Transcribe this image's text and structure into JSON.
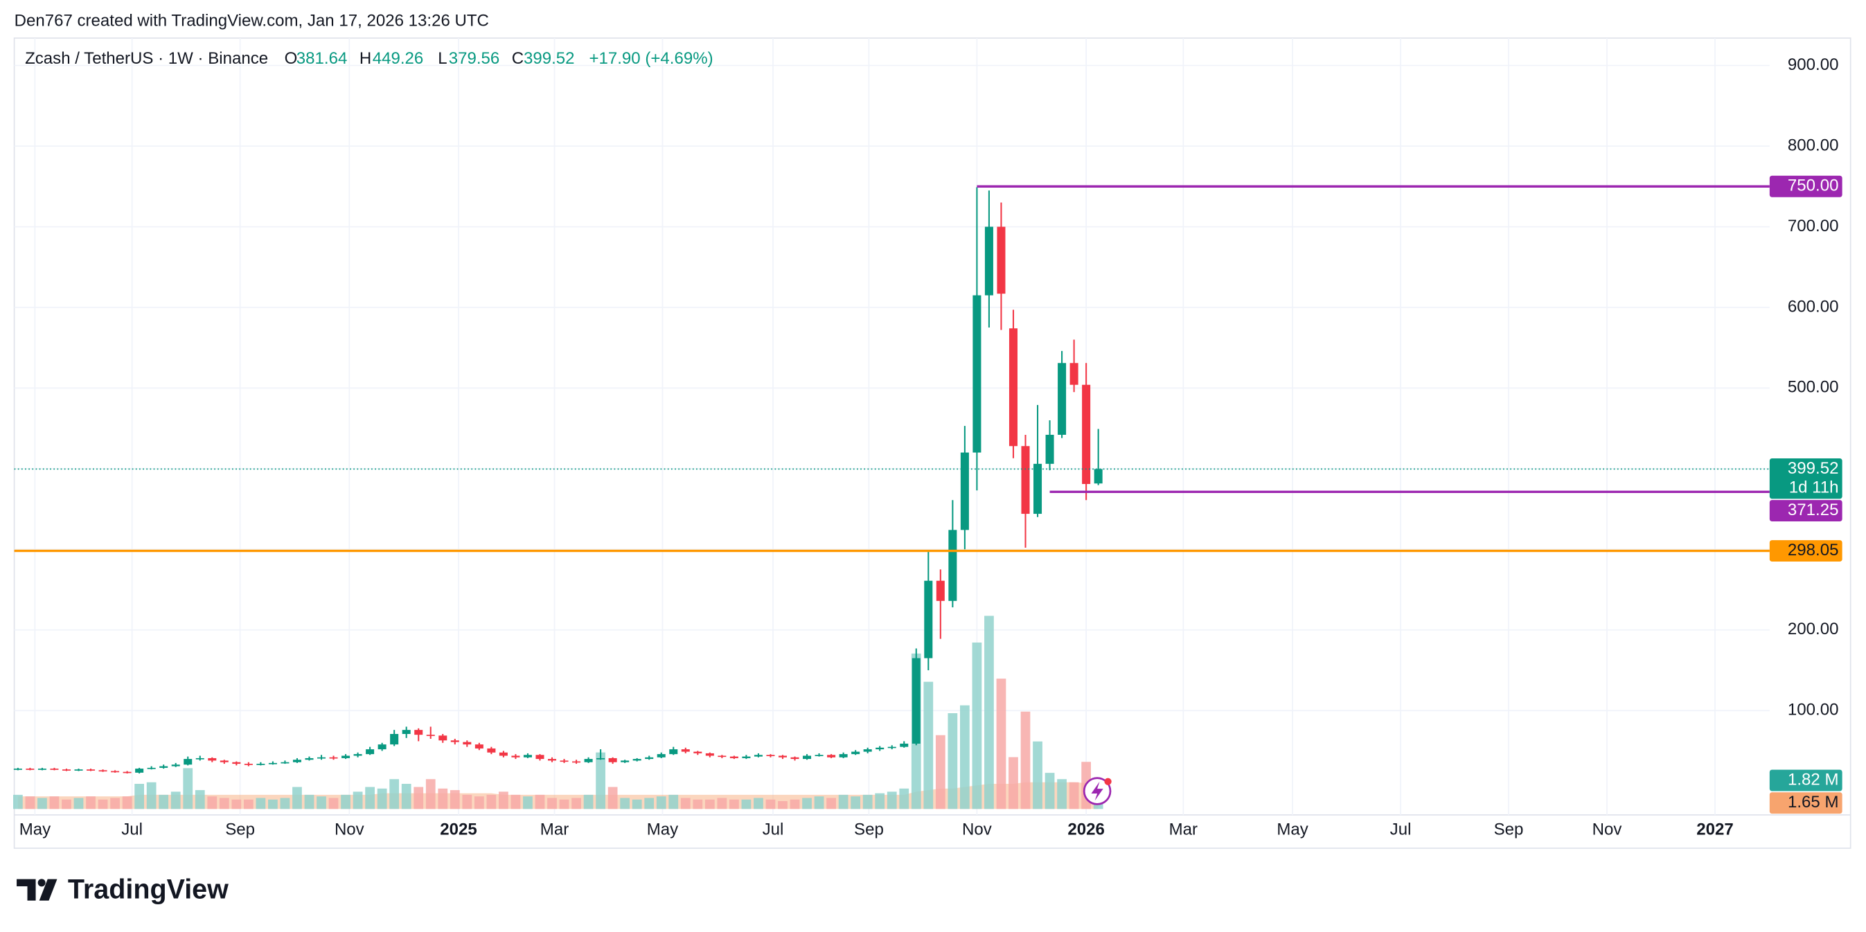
{
  "attribution": "Den767 created with TradingView.com, Jan 17, 2026 13:26 UTC",
  "brand": "TradingView",
  "chart_data": {
    "type": "candlestick",
    "title": "Zcash / TetherUS · 1W · Binance",
    "ohlc_legend": [
      {
        "key": "O",
        "value": 381.64
      },
      {
        "key": "H",
        "value": 449.26
      },
      {
        "key": "L",
        "value": 379.56
      },
      {
        "key": "C",
        "value": 399.52
      }
    ],
    "change": "+17.90 (+4.69%)",
    "up_color": "#089981",
    "down_color": "#f23645",
    "grid": true,
    "xlim": [
      -0.3,
      144.3
    ],
    "xticks": [
      {
        "value": 1.4,
        "label": "May"
      },
      {
        "value": 9.4,
        "label": "Jul"
      },
      {
        "value": 18.3,
        "label": "Sep"
      },
      {
        "value": 27.3,
        "label": "Nov"
      },
      {
        "value": 36.3,
        "label": "2025"
      },
      {
        "value": 44.2,
        "label": "Mar"
      },
      {
        "value": 53.1,
        "label": "May"
      },
      {
        "value": 62.2,
        "label": "Jul"
      },
      {
        "value": 70.1,
        "label": "Sep"
      },
      {
        "value": 79.0,
        "label": "Nov"
      },
      {
        "value": 88.0,
        "label": "2026"
      },
      {
        "value": 96.0,
        "label": "Mar"
      },
      {
        "value": 105.0,
        "label": "May"
      },
      {
        "value": 113.9,
        "label": "Jul"
      },
      {
        "value": 122.8,
        "label": "Sep"
      },
      {
        "value": 130.9,
        "label": "Nov"
      },
      {
        "value": 139.8,
        "label": "2027"
      }
    ],
    "ylim": [
      -22,
      934
    ],
    "yticks": [
      {
        "value": 100,
        "label": "100.00"
      },
      {
        "value": 200,
        "label": "200.00"
      },
      {
        "value": 300,
        "label": "300.00"
      },
      {
        "value": 400,
        "label": "400.00"
      },
      {
        "value": 500,
        "label": "500.00"
      },
      {
        "value": 600,
        "label": "600.00"
      },
      {
        "value": 700,
        "label": "700.00"
      },
      {
        "value": 800,
        "label": "800.00"
      },
      {
        "value": 900,
        "label": "900.00"
      }
    ],
    "hidden_yticks": [
      300,
      400
    ],
    "x": [
      0,
      1,
      2,
      3,
      4,
      5,
      6,
      7,
      8,
      9,
      10,
      11,
      12,
      13,
      14,
      15,
      16,
      17,
      18,
      19,
      20,
      21,
      22,
      23,
      24,
      25,
      26,
      27,
      28,
      29,
      30,
      31,
      32,
      33,
      34,
      35,
      36,
      37,
      38,
      39,
      40,
      41,
      42,
      43,
      44,
      45,
      46,
      47,
      48,
      49,
      50,
      51,
      52,
      53,
      54,
      55,
      56,
      57,
      58,
      59,
      60,
      61,
      62,
      63,
      64,
      65,
      66,
      67,
      68,
      69,
      70,
      71,
      72,
      73,
      74,
      75,
      76,
      77,
      78,
      79,
      80,
      81,
      82,
      83,
      84,
      85,
      86,
      87,
      88,
      89
    ],
    "open": [
      27,
      28,
      27,
      28,
      27,
      26,
      27,
      26,
      25,
      24,
      23,
      28,
      29,
      31,
      33,
      40,
      41,
      38,
      36,
      34,
      33,
      34,
      35,
      36,
      39,
      41,
      42,
      41,
      44,
      46,
      52,
      58,
      71,
      76,
      70,
      69,
      63,
      61,
      58,
      53,
      48,
      44,
      42,
      45,
      40,
      38,
      37,
      36,
      40,
      41,
      36,
      38,
      40,
      42,
      46,
      52,
      49,
      47,
      44,
      43,
      41,
      43,
      45,
      44,
      42,
      40,
      44,
      45,
      42,
      46,
      49,
      52,
      54,
      55,
      59,
      165,
      261,
      236,
      324,
      420,
      615,
      700,
      574,
      428,
      344,
      406,
      442,
      531,
      504,
      381.64
    ],
    "high": [
      29,
      29,
      29,
      29,
      28,
      28,
      28,
      27,
      26,
      25,
      29,
      31,
      33,
      35,
      43,
      44,
      42,
      39,
      37,
      36,
      36,
      37,
      38,
      41,
      43,
      45,
      44,
      46,
      48,
      55,
      60,
      76,
      80,
      78,
      80,
      71,
      65,
      63,
      60,
      55,
      50,
      46,
      47,
      46,
      42,
      40,
      39,
      42,
      52,
      42,
      39,
      41,
      44,
      48,
      55,
      54,
      50,
      48,
      45,
      44,
      45,
      47,
      46,
      45,
      43,
      46,
      47,
      46,
      48,
      51,
      54,
      56,
      57,
      62,
      177,
      299,
      275,
      361,
      453,
      749,
      745,
      730,
      597,
      442,
      479,
      460,
      546,
      560,
      531,
      449.26
    ],
    "low": [
      26,
      26,
      26,
      26,
      25,
      25,
      25,
      24,
      23,
      22,
      22,
      27,
      28,
      30,
      32,
      38,
      36,
      34,
      32,
      31,
      32,
      33,
      34,
      35,
      38,
      39,
      39,
      40,
      42,
      45,
      50,
      56,
      66,
      62,
      65,
      60,
      58,
      55,
      51,
      46,
      42,
      40,
      41,
      38,
      36,
      35,
      34,
      35,
      39,
      34,
      35,
      37,
      39,
      41,
      45,
      47,
      45,
      42,
      41,
      40,
      40,
      42,
      42,
      40,
      38,
      39,
      43,
      41,
      41,
      45,
      47,
      50,
      52,
      54,
      57,
      150,
      189,
      228,
      300,
      373,
      575,
      572,
      413,
      302,
      340,
      398,
      438,
      495,
      361,
      379.56
    ],
    "close": [
      28,
      27,
      28,
      27,
      26,
      27,
      26,
      25,
      24,
      23,
      28,
      29,
      31,
      33,
      40,
      41,
      38,
      36,
      34,
      33,
      34,
      35,
      36,
      39,
      41,
      42,
      41,
      44,
      46,
      52,
      58,
      71,
      76,
      70,
      69,
      63,
      61,
      58,
      53,
      48,
      44,
      42,
      45,
      40,
      38,
      37,
      36,
      40,
      41,
      36,
      38,
      40,
      42,
      46,
      52,
      49,
      47,
      44,
      43,
      41,
      43,
      45,
      44,
      42,
      40,
      44,
      45,
      42,
      46,
      49,
      52,
      54,
      55,
      59,
      165,
      261,
      236,
      324,
      420,
      615,
      700,
      617,
      428,
      344,
      406,
      442,
      531,
      504,
      381,
      399.52
    ],
    "volume": {
      "vlim": [
        0,
        49.1
      ],
      "up_color": "#92d2cc",
      "down_color": "#f7a9a7",
      "values": [
        0.9,
        0.8,
        0.7,
        0.8,
        0.6,
        0.7,
        0.8,
        0.6,
        0.7,
        0.8,
        1.6,
        1.7,
        0.9,
        1.1,
        2.6,
        1.2,
        0.8,
        0.7,
        0.6,
        0.6,
        0.7,
        0.6,
        0.7,
        1.4,
        0.9,
        0.8,
        0.7,
        0.9,
        1.1,
        1.4,
        1.3,
        1.9,
        1.6,
        1.4,
        1.9,
        1.3,
        1.2,
        0.9,
        0.8,
        0.9,
        1.1,
        0.9,
        0.8,
        0.9,
        0.7,
        0.6,
        0.7,
        0.9,
        3.6,
        1.4,
        0.7,
        0.6,
        0.7,
        0.8,
        0.9,
        0.7,
        0.6,
        0.6,
        0.7,
        0.6,
        0.6,
        0.7,
        0.6,
        0.5,
        0.6,
        0.7,
        0.8,
        0.7,
        0.9,
        0.8,
        0.9,
        1.0,
        1.1,
        1.3,
        9.9,
        8.1,
        4.7,
        6.1,
        6.6,
        10.6,
        12.3,
        8.3,
        3.3,
        6.2,
        4.3,
        2.3,
        1.9,
        1.7,
        3.0,
        1.82
      ],
      "last": {
        "value": 1.82,
        "label": "1.82 M",
        "color": "#26a69a"
      }
    },
    "volume_ma": {
      "color": "#f7a46e",
      "values": [
        0.8,
        0.8,
        0.8,
        0.8,
        0.8,
        0.8,
        0.8,
        0.8,
        0.8,
        0.8,
        0.9,
        0.9,
        0.9,
        0.9,
        0.9,
        0.9,
        0.9,
        0.9,
        0.9,
        0.9,
        0.9,
        0.9,
        0.9,
        0.9,
        0.9,
        0.9,
        0.9,
        0.9,
        0.9,
        0.9,
        1.0,
        1.0,
        1.0,
        1.0,
        1.0,
        1.0,
        1.0,
        1.0,
        1.0,
        1.0,
        0.9,
        0.9,
        0.9,
        0.9,
        0.9,
        0.9,
        0.9,
        0.9,
        0.9,
        0.9,
        0.9,
        0.9,
        0.9,
        0.9,
        0.9,
        0.9,
        0.9,
        0.9,
        0.9,
        0.9,
        0.9,
        0.9,
        0.9,
        0.9,
        0.9,
        0.9,
        0.9,
        0.9,
        0.9,
        0.9,
        0.9,
        0.9,
        0.9,
        0.9,
        1.1,
        1.2,
        1.3,
        1.3,
        1.4,
        1.5,
        1.6,
        1.6,
        1.6,
        1.7,
        1.7,
        1.7,
        1.7,
        1.7,
        1.65,
        1.65
      ],
      "last": {
        "value": 1.65,
        "label": "1.65 M"
      }
    },
    "last_price": {
      "value": 399.52,
      "label": "399.52",
      "countdown": "1d 11h",
      "color": "#089981"
    },
    "price_lines": [
      {
        "value": 750,
        "label": "750.00",
        "color": "#9c27b0",
        "text_color": "#ffffff",
        "start_x": 79
      },
      {
        "value": 371.25,
        "label": "371.25",
        "color": "#9c27b0",
        "text_color": "#ffffff",
        "start_x": 85
      },
      {
        "value": 298.05,
        "label": "298.05",
        "color": "#ff9800",
        "text_color": "#131722"
      }
    ]
  }
}
